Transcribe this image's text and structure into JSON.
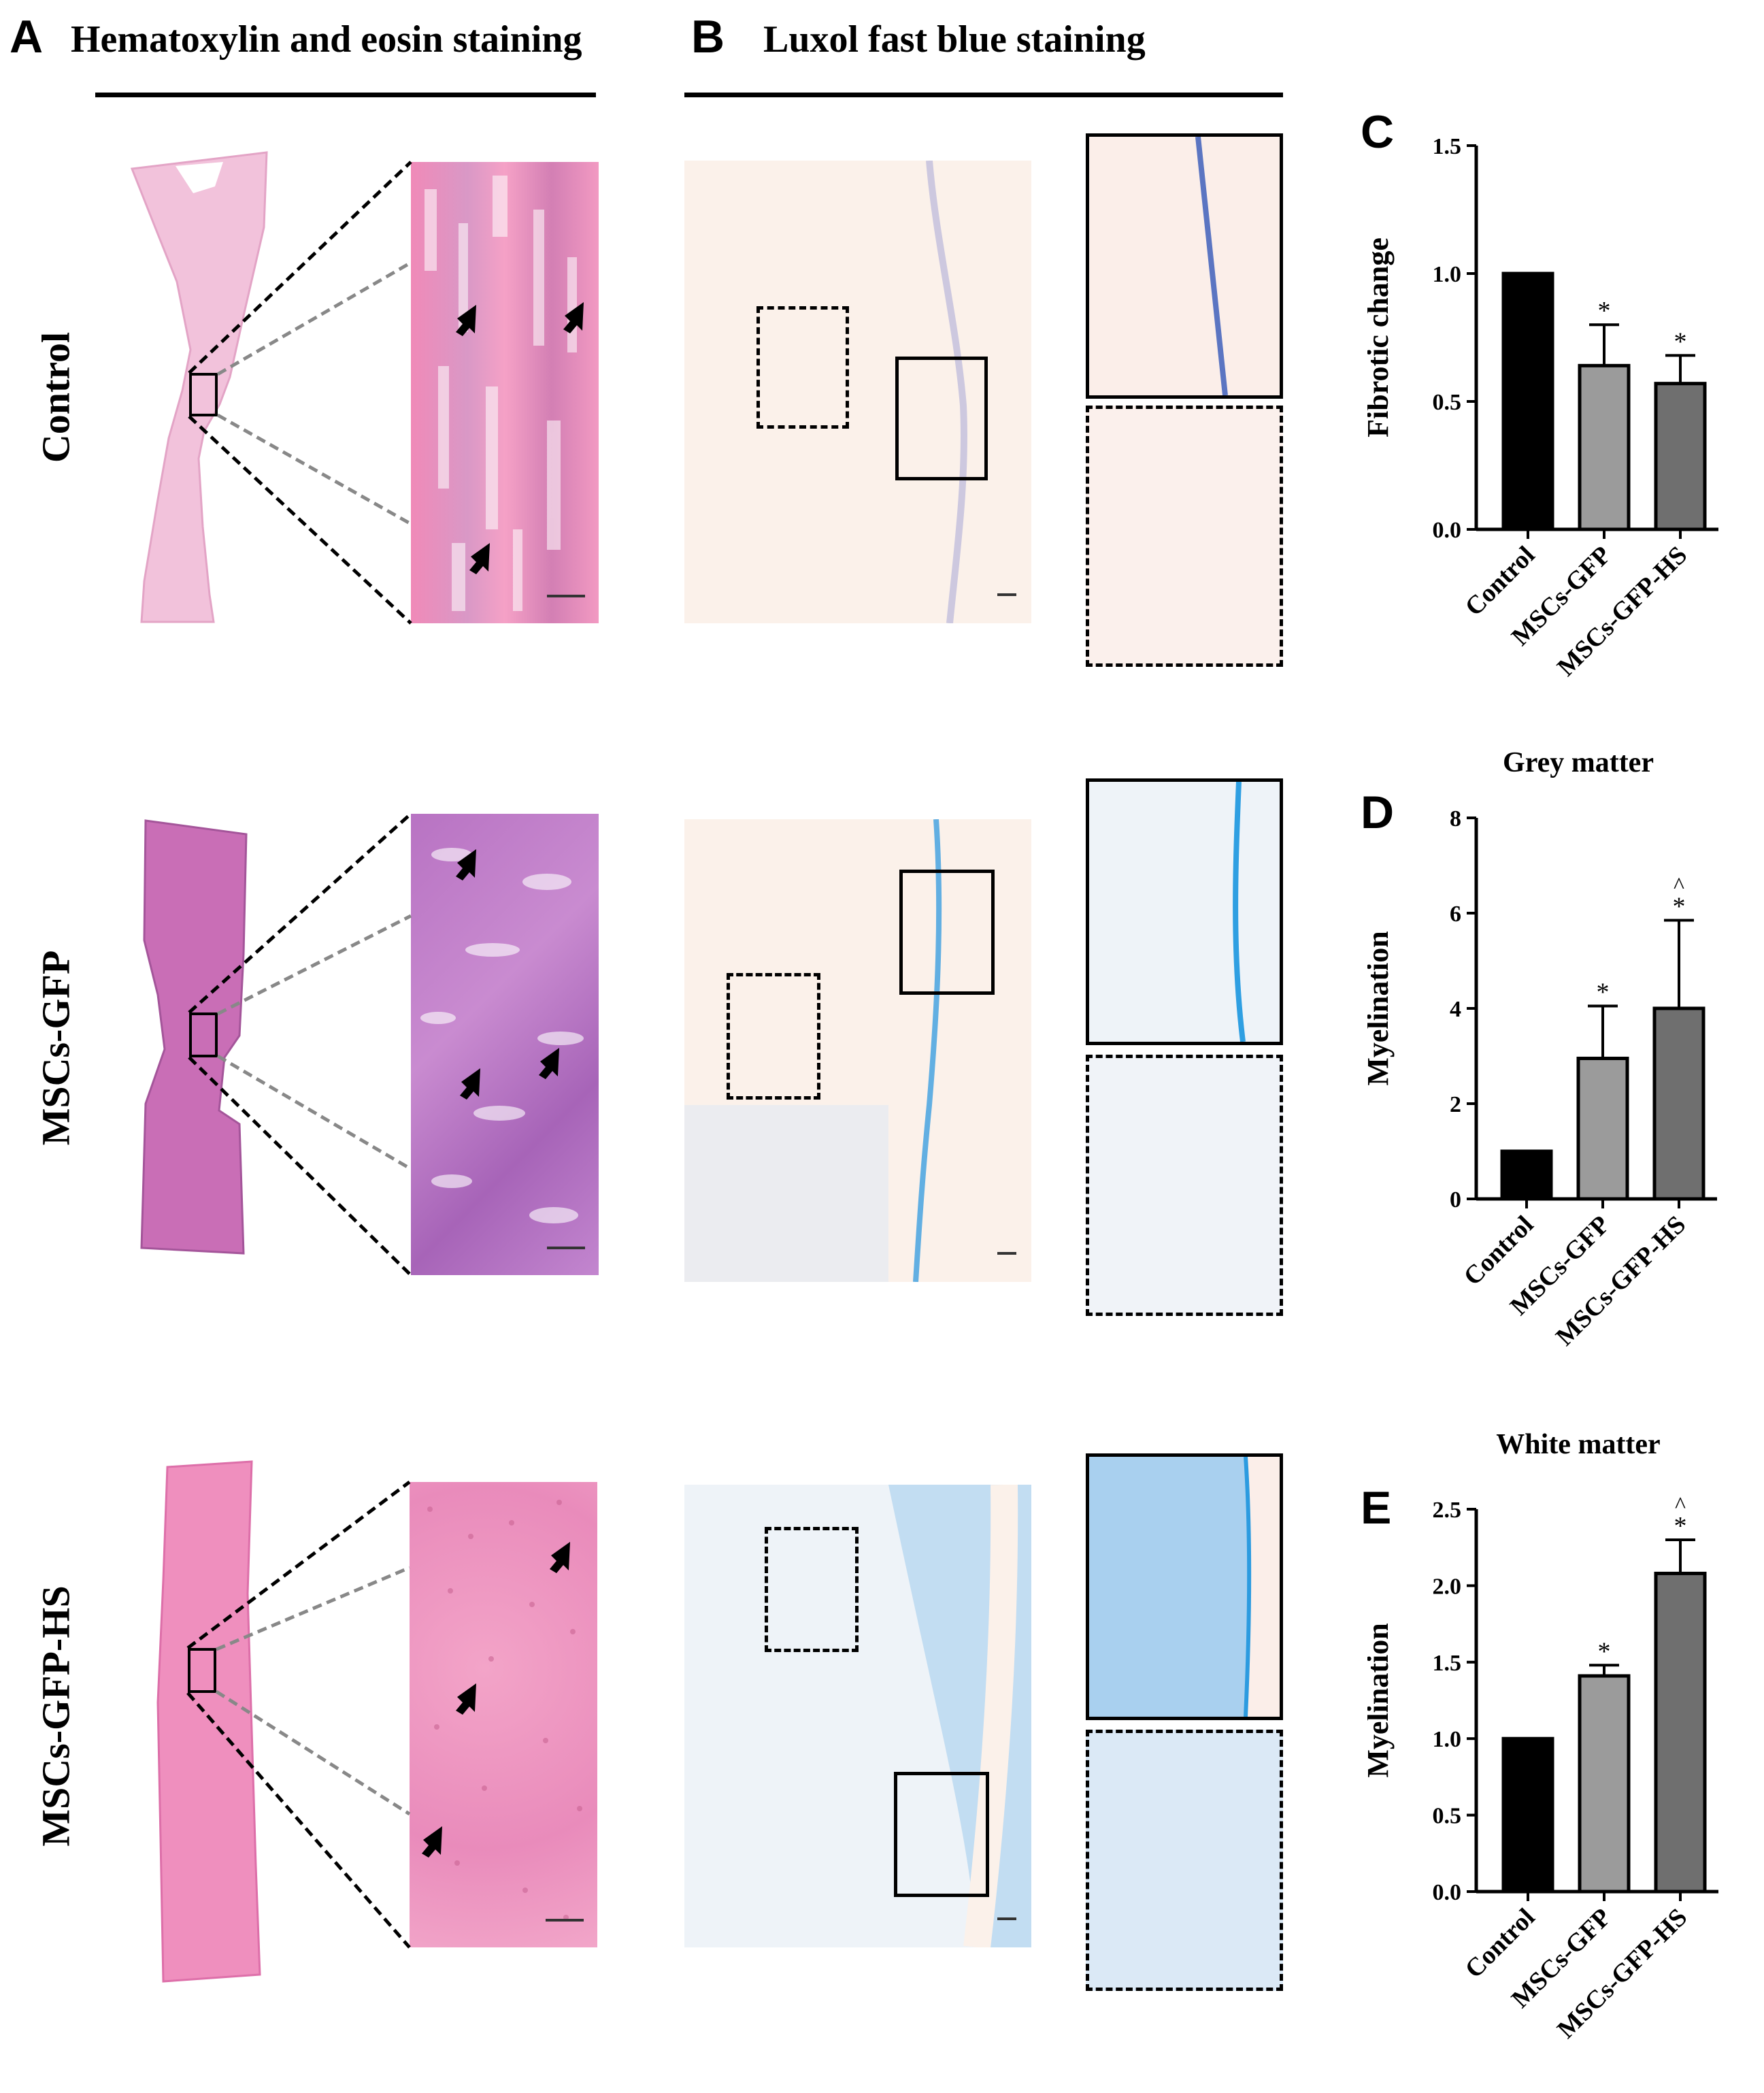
{
  "panels": {
    "A": {
      "letter": "A",
      "title": "Hematoxylin and eosin staining"
    },
    "B": {
      "letter": "B",
      "title": "Luxol fast blue staining"
    },
    "C": {
      "letter": "C"
    },
    "D": {
      "letter": "D"
    },
    "E": {
      "letter": "E"
    }
  },
  "rows": [
    {
      "label": "Control"
    },
    {
      "label": "MSCs-GFP"
    },
    {
      "label": "MSCs-GFP-HS"
    }
  ],
  "colors": {
    "he_pink": "#e9a6c9",
    "he_purple": "#b779c2",
    "lfb_bg": "#fbf1ea",
    "lfb_blue": "#4f9fd8",
    "bar_control": "#000000",
    "bar_gfp": "#9b9b9b",
    "bar_hs": "#6f6f6f"
  },
  "chart_data": [
    {
      "panel": "C",
      "type": "bar",
      "title": "",
      "ylabel": "Fibrotic change",
      "categories": [
        "Control",
        "MSCs-GFP",
        "MSCs-GFP-HS"
      ],
      "values": [
        1.0,
        0.64,
        0.57
      ],
      "errors": [
        0,
        0.16,
        0.11
      ],
      "significance": [
        "",
        "*",
        "*"
      ],
      "ylim": [
        0,
        1.5
      ],
      "yticks": [
        "0.0",
        "0.5",
        "1.0",
        "1.5"
      ],
      "ytick_values": [
        0,
        0.5,
        1.0,
        1.5
      ]
    },
    {
      "panel": "D",
      "type": "bar",
      "title": "Grey matter",
      "ylabel": "Myelination",
      "categories": [
        "Control",
        "MSCs-GFP",
        "MSCs-GFP-HS"
      ],
      "values": [
        1.0,
        2.95,
        4.0
      ],
      "errors": [
        0,
        1.1,
        1.85
      ],
      "significance": [
        "",
        "*",
        "*"
      ],
      "significance2": [
        "",
        "",
        "^"
      ],
      "ylim": [
        0,
        8
      ],
      "yticks": [
        "0",
        "2",
        "4",
        "6",
        "8"
      ],
      "ytick_values": [
        0,
        2,
        4,
        6,
        8
      ]
    },
    {
      "panel": "E",
      "type": "bar",
      "title": "White matter",
      "ylabel": "Myelination",
      "categories": [
        "Control",
        "MSCs-GFP",
        "MSCs-GFP-HS"
      ],
      "values": [
        1.0,
        1.41,
        2.08
      ],
      "errors": [
        0,
        0.07,
        0.22
      ],
      "significance": [
        "",
        "*",
        "*"
      ],
      "significance2": [
        "",
        "",
        "^"
      ],
      "ylim": [
        0,
        2.5
      ],
      "yticks": [
        "0.0",
        "0.5",
        "1.0",
        "1.5",
        "2.0",
        "2.5"
      ],
      "ytick_values": [
        0,
        0.5,
        1.0,
        1.5,
        2.0,
        2.5
      ]
    }
  ]
}
